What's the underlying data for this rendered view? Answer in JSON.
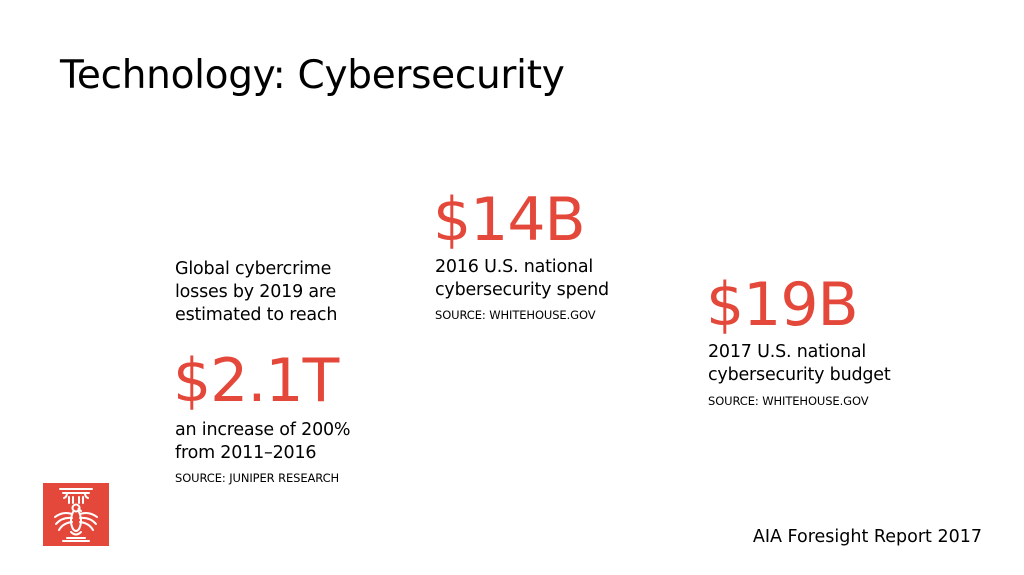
{
  "slide": {
    "title": "Technology: Cybersecurity",
    "footer": "AIA Foresight Report 2017"
  },
  "stats": {
    "cybercrime": {
      "intro_line1": "Global cybercrime",
      "intro_line2": "losses by 2019 are",
      "intro_line3": "estimated to reach",
      "value": "$2.1T",
      "desc_line1": "an increase of 200%",
      "desc_line2": "from 2011–2016",
      "source": "SOURCE: JUNIPER RESEARCH"
    },
    "spend_2016": {
      "value": "$14B",
      "desc_line1": "2016 U.S. national",
      "desc_line2": "cybersecurity spend",
      "source": "SOURCE: WHITEHOUSE.GOV"
    },
    "budget_2017": {
      "value": "$19B",
      "desc_line1": "2017 U.S. national",
      "desc_line2": "cybersecurity budget",
      "source": "SOURCE: WHITEHOUSE.GOV"
    }
  },
  "colors": {
    "accent": "#e4483a",
    "text": "#000000",
    "background": "#ffffff"
  },
  "logo": {
    "icon": "aia-eagle-column-logo"
  }
}
